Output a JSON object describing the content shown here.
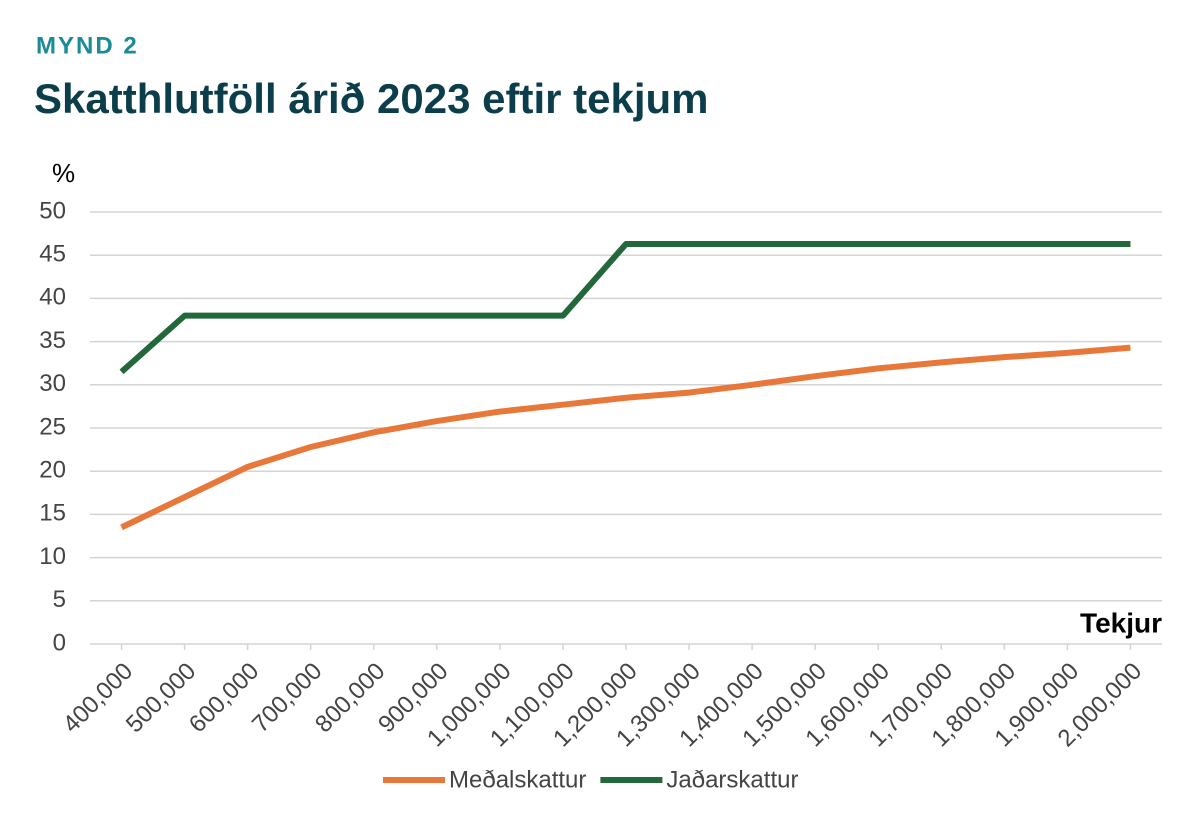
{
  "chart_data": {
    "type": "line",
    "label": "MYND 2",
    "title": "Skatthlutföll árið 2023 eftir tekjum",
    "y_label": "%",
    "x_label": "Tekjur",
    "categories": [
      "400,000",
      "500,000",
      "600,000",
      "700,000",
      "800,000",
      "900,000",
      "1,000,000",
      "1,100,000",
      "1,200,000",
      "1,300,000",
      "1,400,000",
      "1,500,000",
      "1,600,000",
      "1,700,000",
      "1,800,000",
      "1,900,000",
      "2,000,000"
    ],
    "series": [
      {
        "name": "Meðalskattur",
        "color": "#e8773a",
        "values": [
          13.5,
          17,
          20.5,
          22.8,
          24.5,
          25.8,
          26.9,
          27.7,
          28.5,
          29.1,
          30,
          31,
          31.9,
          32.6,
          33.2,
          33.7,
          34.3
        ]
      },
      {
        "name": "Jaðarskattur",
        "color": "#23683a",
        "values": [
          31.5,
          38,
          38,
          38,
          38,
          38,
          38,
          38,
          46.3,
          46.3,
          46.3,
          46.3,
          46.3,
          46.3,
          46.3,
          46.3,
          46.3
        ]
      }
    ],
    "ylim": [
      0,
      50
    ],
    "yticks": [
      0,
      5,
      10,
      15,
      20,
      25,
      30,
      35,
      40,
      45,
      50
    ],
    "grid": true
  }
}
